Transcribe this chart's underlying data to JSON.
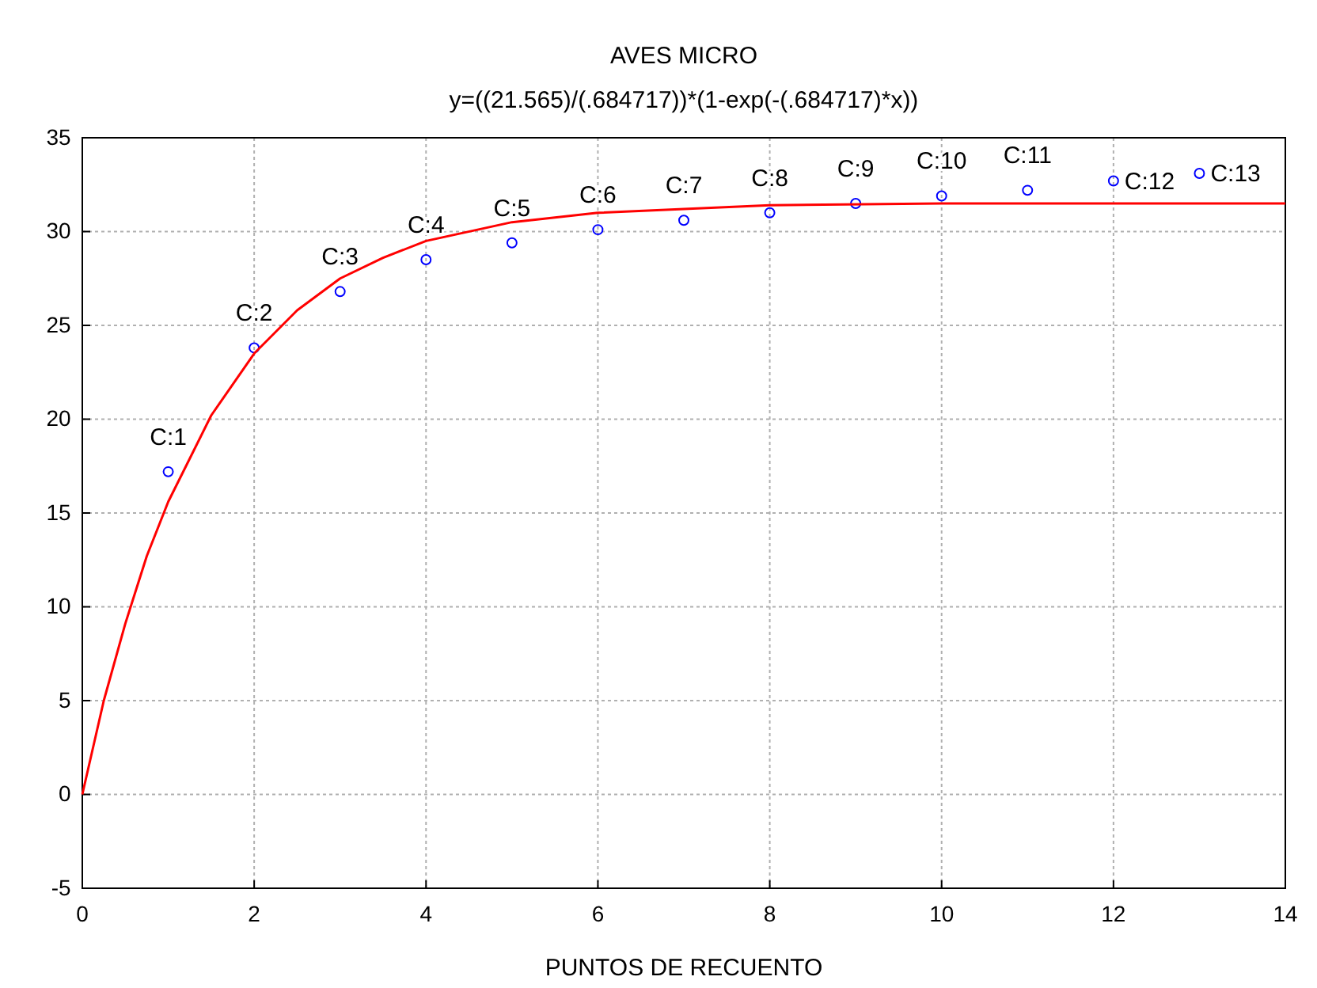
{
  "chart_data": {
    "type": "scatter",
    "title": "AVES MICRO",
    "subtitle": "y=((21.565)/(.684717))*(1-exp(-(.684717)*x))",
    "xlabel": "PUNTOS DE RECUENTO",
    "xlim": [
      0,
      14
    ],
    "xticks": [
      0,
      2,
      4,
      6,
      8,
      10,
      12,
      14
    ],
    "ylim": [
      -5,
      35
    ],
    "yticks": [
      -5,
      0,
      5,
      10,
      15,
      20,
      25,
      30,
      35
    ],
    "grid": true,
    "series": [
      {
        "color": "#0000ff",
        "marker": "circle",
        "x": [
          1,
          2,
          3,
          4,
          5,
          6,
          7,
          8,
          9,
          10,
          11,
          12,
          13
        ],
        "values": [
          17.2,
          23.8,
          26.8,
          28.5,
          29.4,
          30.1,
          30.6,
          31.0,
          31.5,
          31.9,
          32.2,
          32.7,
          33.1
        ]
      },
      {
        "type": "line",
        "color": "#ff0000",
        "marker": "none",
        "line_style": "solid",
        "x": [
          0,
          0.25,
          0.5,
          0.75,
          1,
          1.5,
          2,
          2.5,
          3,
          3.5,
          4,
          5,
          6,
          7,
          8,
          10,
          12,
          14
        ],
        "values": [
          0,
          5.0,
          9.1,
          12.7,
          15.6,
          20.2,
          23.5,
          25.8,
          27.5,
          28.6,
          29.5,
          30.5,
          31.0,
          31.2,
          31.4,
          31.5,
          31.5,
          31.5
        ]
      }
    ],
    "annotations": [
      {
        "text": "C:1",
        "x": 1,
        "y": 17.2
      },
      {
        "text": "C:2",
        "x": 2,
        "y": 23.8
      },
      {
        "text": "C:3",
        "x": 3,
        "y": 26.8
      },
      {
        "text": "C:4",
        "x": 4,
        "y": 28.5
      },
      {
        "text": "C:5",
        "x": 5,
        "y": 29.4
      },
      {
        "text": "C:6",
        "x": 6,
        "y": 30.1
      },
      {
        "text": "C:7",
        "x": 7,
        "y": 30.6
      },
      {
        "text": "C:8",
        "x": 8,
        "y": 31.0
      },
      {
        "text": "C:9",
        "x": 9,
        "y": 31.5
      },
      {
        "text": "C:10",
        "x": 10,
        "y": 31.9
      },
      {
        "text": "C:11",
        "x": 11,
        "y": 32.2
      },
      {
        "text": "C:12",
        "x": 12,
        "y": 32.7
      },
      {
        "text": "C:13",
        "x": 13,
        "y": 33.1
      }
    ]
  }
}
